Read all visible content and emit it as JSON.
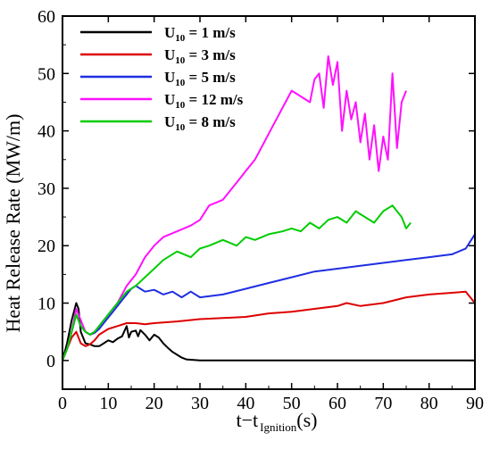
{
  "chart_data": {
    "type": "line",
    "ylabel": "Heat Release Rate (MW/m)",
    "xlabel": {
      "main": "t−t",
      "sub": "Ignition",
      "unit": "(s)"
    },
    "xlim": [
      0,
      90
    ],
    "ylim": [
      -5,
      60
    ],
    "xticks": [
      0,
      10,
      20,
      30,
      40,
      50,
      60,
      70,
      80,
      90
    ],
    "yticks": [
      0,
      10,
      20,
      30,
      40,
      50,
      60
    ],
    "grid": false,
    "legend_position": "top-left",
    "series": [
      {
        "name": "U10 = 1 m/s",
        "label_main": "U",
        "label_sub": "10",
        "label_rest": " = 1 m/s",
        "color": "#000000",
        "x": [
          0,
          1,
          2,
          3,
          3.5,
          4,
          5,
          6,
          7,
          8,
          9,
          10,
          11,
          12,
          13,
          14,
          14.5,
          15,
          16,
          16.5,
          17,
          18,
          19,
          20,
          21,
          22,
          23,
          24,
          25,
          26,
          27,
          30,
          40,
          50,
          60,
          70,
          80,
          90
        ],
        "y": [
          0,
          3,
          7,
          10,
          9,
          5,
          3,
          2.8,
          2.5,
          2.5,
          3,
          3.5,
          3.2,
          3.8,
          4.2,
          6,
          4,
          5,
          5.2,
          4.2,
          5.3,
          4.5,
          3.5,
          4.5,
          4,
          3,
          2.2,
          1.5,
          1,
          0.5,
          0.2,
          0,
          0,
          0,
          0,
          0,
          0,
          0
        ]
      },
      {
        "name": "U10 = 3 m/s",
        "label_main": "U",
        "label_sub": "10",
        "label_rest": " = 3 m/s",
        "color": "#dd0000",
        "x": [
          0,
          1,
          2,
          3,
          4,
          5,
          6,
          7,
          8,
          10,
          12,
          14,
          16,
          18,
          20,
          25,
          30,
          35,
          40,
          45,
          50,
          55,
          60,
          62,
          65,
          70,
          75,
          80,
          85,
          88,
          90
        ],
        "y": [
          0,
          2,
          4,
          5,
          3,
          2.5,
          2.8,
          3.5,
          4.5,
          5.5,
          6,
          6.5,
          6.5,
          6.3,
          6.5,
          6.8,
          7.2,
          7.4,
          7.6,
          8.2,
          8.5,
          9,
          9.5,
          10,
          9.5,
          10,
          11,
          11.5,
          11.8,
          12,
          10
        ]
      },
      {
        "name": "U10 = 5 m/s",
        "label_main": "U",
        "label_sub": "10",
        "label_rest": " = 5 m/s",
        "color": "#1f2ee0",
        "x": [
          0,
          1,
          2,
          3,
          4,
          5,
          6,
          7,
          8,
          9,
          10,
          11,
          12,
          13,
          14,
          15,
          16,
          17,
          18,
          20,
          22,
          24,
          26,
          28,
          30,
          35,
          40,
          45,
          50,
          55,
          60,
          65,
          70,
          75,
          80,
          85,
          88,
          90
        ],
        "y": [
          0,
          2,
          5,
          8,
          6,
          5,
          4.5,
          4.8,
          5.5,
          6.5,
          7.5,
          8.5,
          9.5,
          10.5,
          11.5,
          12.5,
          13,
          12.5,
          12,
          12.3,
          11.5,
          12,
          11,
          12,
          11,
          11.5,
          12.5,
          13.5,
          14.5,
          15.5,
          16,
          16.5,
          17,
          17.5,
          18,
          18.5,
          19.5,
          22
        ]
      },
      {
        "name": "U10 = 12 m/s",
        "label_main": "U",
        "label_sub": "10",
        "label_rest": " = 12 m/s",
        "color": "#ff10ff",
        "x": [
          0,
          1,
          2,
          3,
          4,
          5,
          6,
          7,
          8,
          9,
          10,
          12,
          14,
          16,
          18,
          20,
          22,
          25,
          28,
          30,
          32,
          35,
          38,
          40,
          42,
          44,
          46,
          48,
          50,
          52,
          54,
          55,
          56,
          57,
          58,
          59,
          60,
          61,
          62,
          63,
          64,
          65,
          66,
          67,
          68,
          69,
          70,
          71,
          72,
          73,
          74,
          75
        ],
        "y": [
          0,
          2,
          5,
          9,
          7,
          5,
          4.5,
          5,
          6,
          7,
          8,
          10,
          13,
          15,
          18,
          20,
          21.5,
          22.5,
          23.5,
          24.5,
          27,
          28,
          31,
          33,
          35,
          38,
          41,
          44,
          47,
          46,
          45,
          49,
          50,
          44,
          53,
          48,
          52,
          40,
          47,
          42,
          45,
          38,
          43,
          35,
          41,
          33,
          39,
          35,
          50,
          37,
          45,
          47
        ]
      },
      {
        "name": "U10 = 8 m/s",
        "label_main": "U",
        "label_sub": "10",
        "label_rest": " = 8 m/s",
        "color": "#00cc00",
        "x": [
          0,
          1,
          2,
          3,
          4,
          5,
          6,
          7,
          8,
          9,
          10,
          12,
          14,
          16,
          18,
          20,
          22,
          25,
          28,
          30,
          32,
          35,
          38,
          40,
          42,
          45,
          48,
          50,
          52,
          54,
          56,
          58,
          60,
          62,
          64,
          66,
          68,
          70,
          72,
          74,
          75,
          76
        ],
        "y": [
          0,
          2,
          5,
          8,
          6,
          5,
          4.5,
          5,
          6,
          7,
          8,
          10,
          12,
          13,
          14.5,
          16,
          17.5,
          19,
          18,
          19.5,
          20,
          21,
          20,
          21.5,
          21,
          22,
          22.5,
          23,
          22.5,
          24,
          23,
          24.5,
          25,
          24,
          26,
          25,
          24,
          26,
          27,
          25,
          23,
          24
        ]
      }
    ]
  }
}
